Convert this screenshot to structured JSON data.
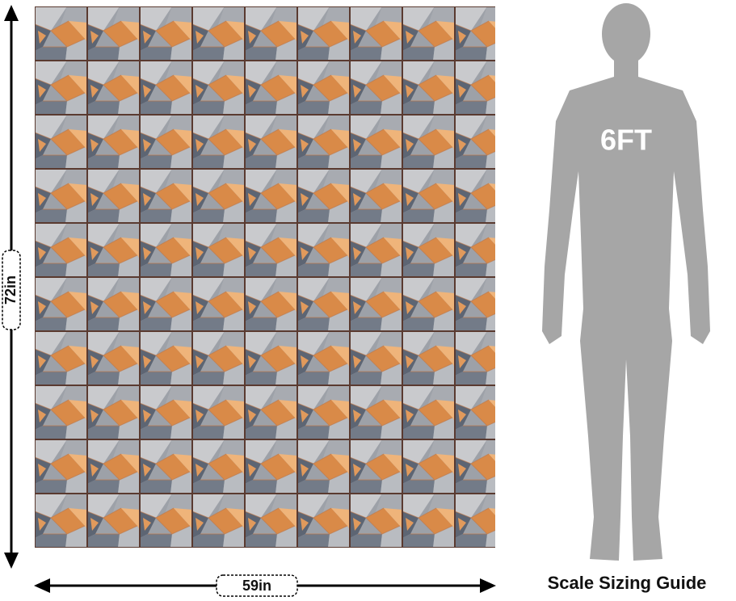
{
  "dimensions": {
    "height": "72in",
    "width": "59in"
  },
  "figure": {
    "label": "6FT"
  },
  "caption": "Scale Sizing Guide"
}
